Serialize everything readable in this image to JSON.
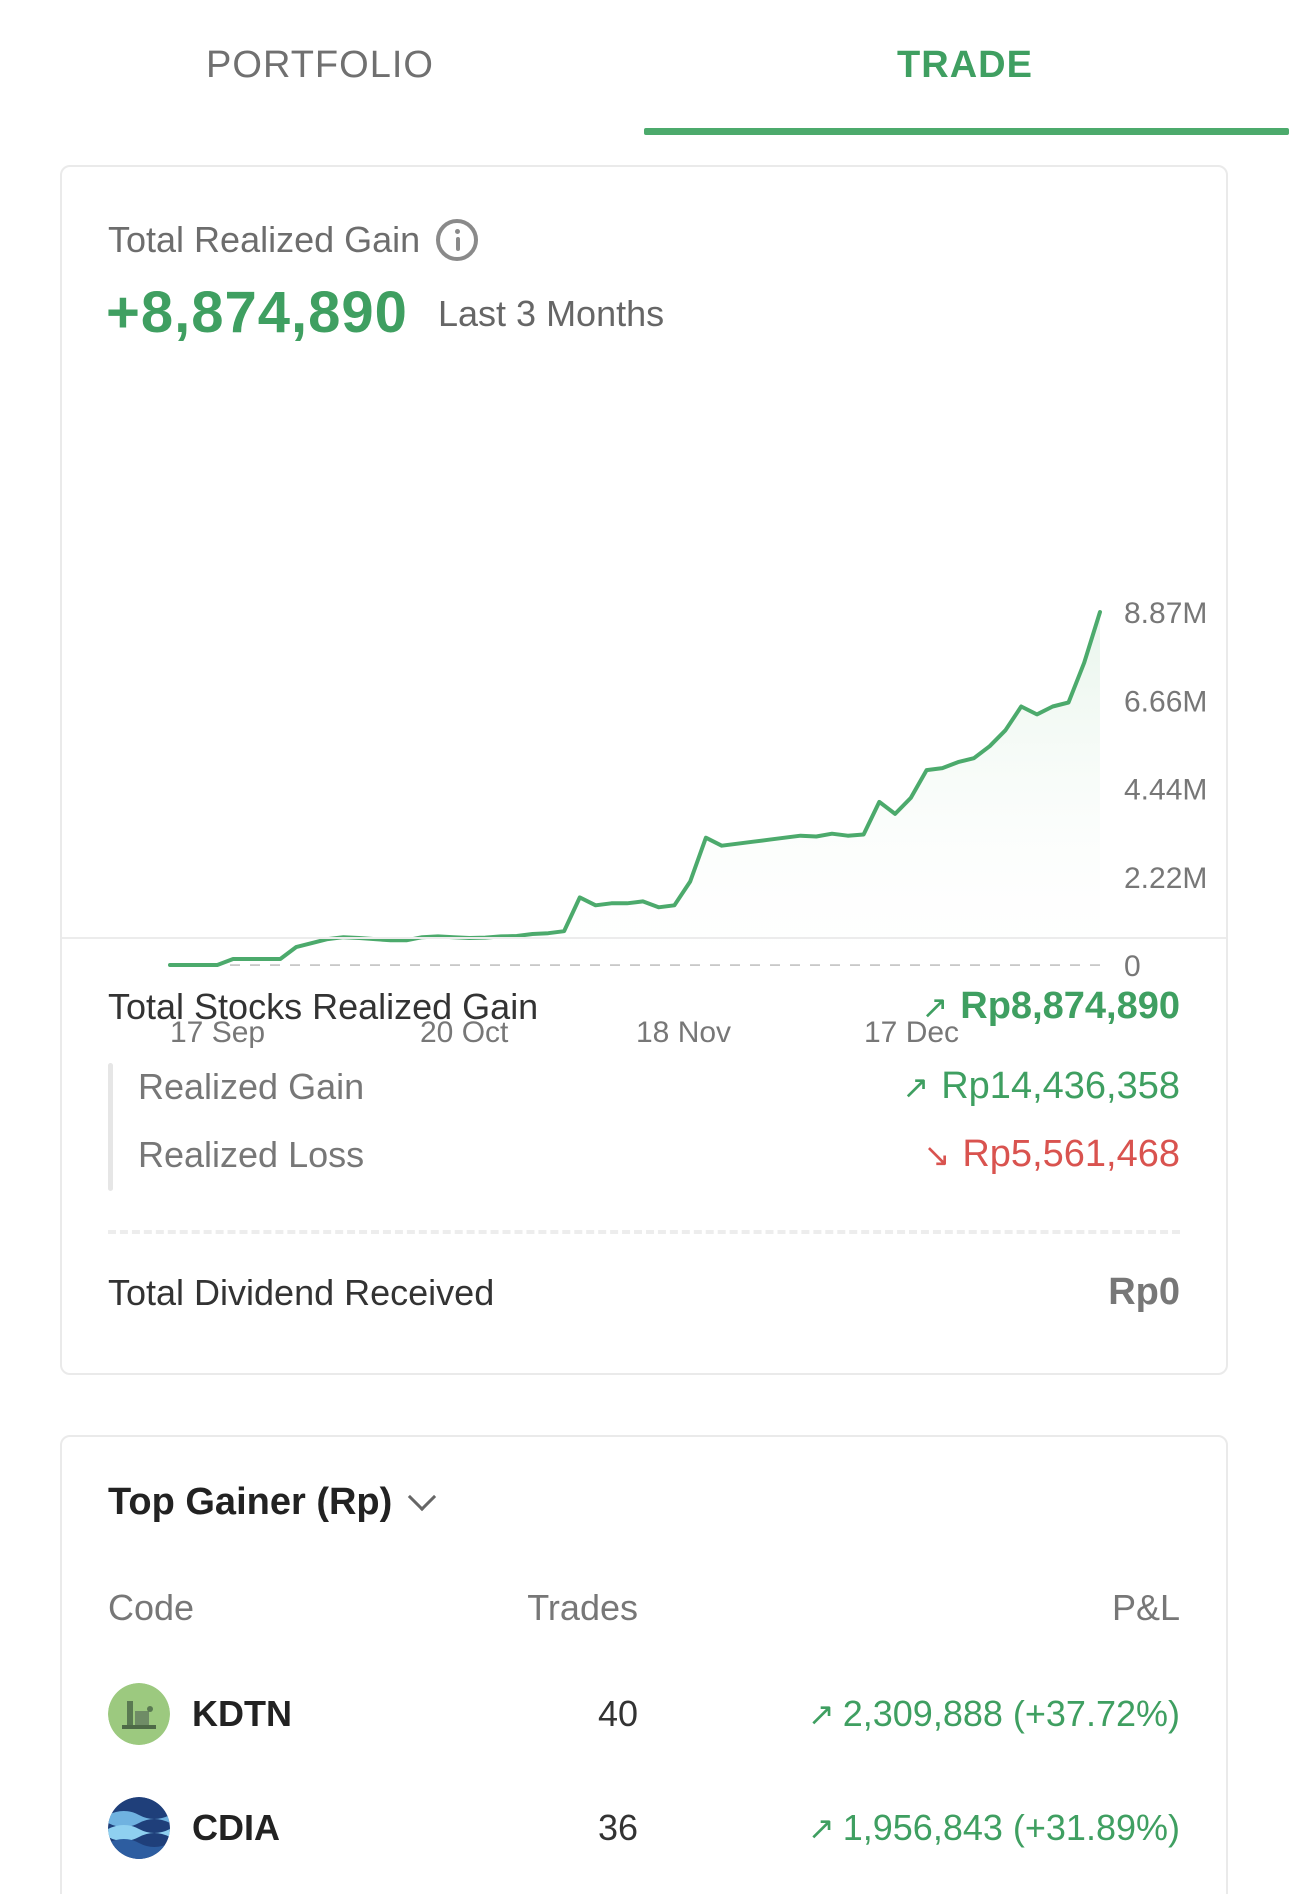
{
  "tabs": {
    "portfolio": "PORTFOLIO",
    "trade": "TRADE",
    "active": "trade"
  },
  "summary": {
    "title": "Total Realized Gain",
    "value": "+8,874,890",
    "period": "Last 3 Months"
  },
  "chart_data": {
    "type": "area",
    "x_tick_labels": [
      "17 Sep",
      "20 Oct",
      "18 Nov",
      "17 Dec"
    ],
    "y_tick_labels": [
      "8.87M",
      "6.66M",
      "4.44M",
      "2.22M",
      "0"
    ],
    "ylim": [
      0,
      8874890
    ],
    "series": [
      {
        "values": [
          0,
          0,
          0,
          0,
          150000,
          150000,
          150000,
          150000,
          450000,
          550000,
          650000,
          700000,
          680000,
          650000,
          620000,
          620000,
          700000,
          720000,
          700000,
          680000,
          690000,
          720000,
          730000,
          780000,
          800000,
          850000,
          1700000,
          1500000,
          1550000,
          1550000,
          1600000,
          1450000,
          1500000,
          2100000,
          3200000,
          3000000,
          3050000,
          3100000,
          3150000,
          3200000,
          3250000,
          3230000,
          3300000,
          3250000,
          3280000,
          4100000,
          3800000,
          4200000,
          4900000,
          4950000,
          5100000,
          5200000,
          5500000,
          5900000,
          6500000,
          6300000,
          6500000,
          6600000,
          7600000,
          8874890
        ]
      }
    ],
    "colors": {
      "line": "#4caa6c",
      "fill": "#e9f5ec",
      "baseline": "#c8c8c8"
    }
  },
  "breakdown": {
    "total_label": "Total Stocks Realized Gain",
    "total_value": "Rp8,874,890",
    "gain_label": "Realized Gain",
    "gain_value": "Rp14,436,358",
    "loss_label": "Realized Loss",
    "loss_value": "Rp5,561,468",
    "dividend_label": "Total Dividend Received",
    "dividend_value": "Rp0",
    "up_arrow": "↗",
    "down_arrow": "↘"
  },
  "top_gainer": {
    "title": "Top Gainer (Rp)",
    "columns": {
      "code": "Code",
      "trades": "Trades",
      "pl": "P&L"
    },
    "rows": [
      {
        "code": "KDTN",
        "trades": "40",
        "pl": "2,309,888 (+37.72%)",
        "icon": "kdtn-logo-icon"
      },
      {
        "code": "CDIA",
        "trades": "36",
        "pl": "1,956,843 (+31.89%)",
        "icon": "cdia-logo-icon"
      }
    ]
  }
}
